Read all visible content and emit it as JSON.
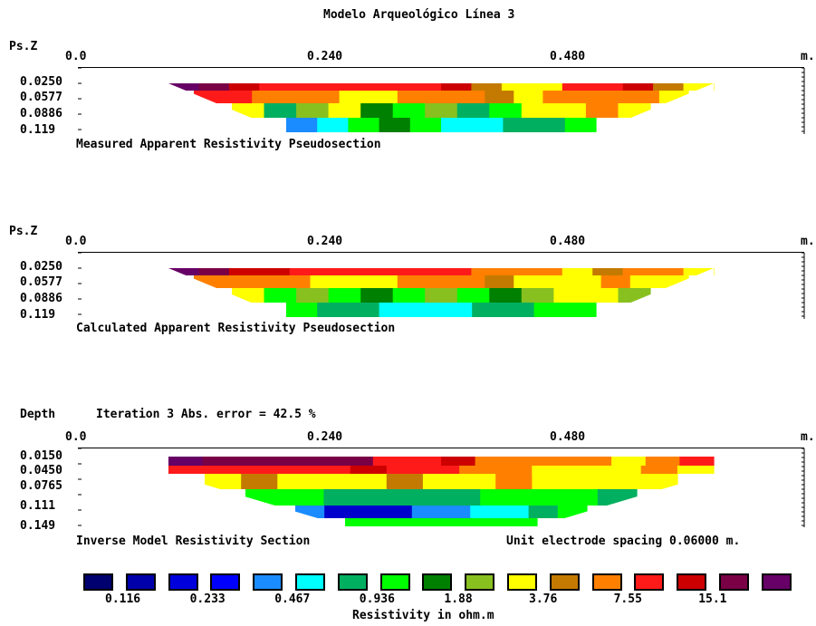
{
  "title": "Modelo Arqueológico Línea 3",
  "x_ticks": [
    "0.0",
    "0.240",
    "0.480"
  ],
  "x_unit": "m.",
  "panels": [
    {
      "id": "measured",
      "ylabel": "Ps.Z",
      "depths": [
        "0.0250",
        "0.0577",
        "0.0886",
        "0.119"
      ],
      "caption": "Measured Apparent Resistivity Pseudosection",
      "colors": [
        [
          "#660066",
          "#7a0046",
          "#cc0000",
          "#ff1a1a",
          "#ff1a1a",
          "#ff1a1a",
          "#ff1a1a",
          "#ff1a1a",
          "#ff1a1a",
          "#cc0000",
          "#c47a00",
          "#ffff00",
          "#ffff00",
          "#ff1a1a",
          "#ff1a1a",
          "#cc0000",
          "#c47a00",
          "#ffff00"
        ],
        [
          "#ff1a1a",
          "#ff1a1a",
          "#ff8000",
          "#ff8000",
          "#ff8000",
          "#ffff00",
          "#ffff00",
          "#ff8000",
          "#ff8000",
          "#ff8000",
          "#c47a00",
          "#ffff00",
          "#ff8000",
          "#ff8000",
          "#ff8000",
          "#ff8000",
          "#ffff00"
        ],
        [
          "#ffff00",
          "#00b060",
          "#88c020",
          "#ffff00",
          "#008000",
          "#00ff00",
          "#88c020",
          "#00b060",
          "#00ff00",
          "#ffff00",
          "#ffff00",
          "#ff8000",
          "#ffff00"
        ],
        [
          "#1a8cff",
          "#00ffff",
          "#00ff00",
          "#008000",
          "#00ff00",
          "#00ffff",
          "#00ffff",
          "#00b060",
          "#00b060",
          "#00ff00"
        ]
      ]
    },
    {
      "id": "calculated",
      "ylabel": "Ps.Z",
      "depths": [
        "0.0250",
        "0.0577",
        "0.0886",
        "0.119"
      ],
      "caption": "Calculated Apparent Resistivity Pseudosection",
      "colors": [
        [
          "#660066",
          "#7a0046",
          "#cc0000",
          "#cc0000",
          "#ff1a1a",
          "#ff1a1a",
          "#ff1a1a",
          "#ff1a1a",
          "#ff1a1a",
          "#ff1a1a",
          "#ff8000",
          "#ff8000",
          "#ff8000",
          "#ffff00",
          "#c47a00",
          "#ff8000",
          "#ff8000",
          "#ffff00"
        ],
        [
          "#ff8000",
          "#ff8000",
          "#ff8000",
          "#ff8000",
          "#ffff00",
          "#ffff00",
          "#ffff00",
          "#ff8000",
          "#ff8000",
          "#ff8000",
          "#c47a00",
          "#ffff00",
          "#ffff00",
          "#ffff00",
          "#ff8000",
          "#ffff00",
          "#ffff00"
        ],
        [
          "#ffff00",
          "#00ff00",
          "#88c020",
          "#00ff00",
          "#008000",
          "#00ff00",
          "#88c020",
          "#00ff00",
          "#008000",
          "#88c020",
          "#ffff00",
          "#ffff00",
          "#88c020"
        ],
        [
          "#00ff00",
          "#00b060",
          "#00b060",
          "#00ffff",
          "#00ffff",
          "#00ffff",
          "#00b060",
          "#00b060",
          "#00ff00",
          "#00ff00"
        ]
      ]
    },
    {
      "id": "inverse",
      "ylabel": "Depth",
      "iteration_text": "Iteration 3 Abs. error = 42.5 %",
      "depths": [
        "0.0150",
        "0.0450",
        "0.0765",
        "0.111",
        "0.149"
      ],
      "caption": "Inverse Model Resistivity Section",
      "spacing_text": "Unit electrode spacing 0.06000 m.",
      "colors": [
        [
          "#660066",
          "#7a0046",
          "#7a0046",
          "#7a0046",
          "#7a0046",
          "#7a0046",
          "#ff1a1a",
          "#ff1a1a",
          "#cc0000",
          "#ff8000",
          "#ff8000",
          "#ff8000",
          "#ff8000",
          "#ffff00",
          "#ff8000",
          "#ff1a1a"
        ],
        [
          "#ff1a1a",
          "#ff1a1a",
          "#ff1a1a",
          "#ff1a1a",
          "#ff1a1a",
          "#cc0000",
          "#ff1a1a",
          "#ff1a1a",
          "#ff8000",
          "#ff8000",
          "#ffff00",
          "#ffff00",
          "#ffff00",
          "#ff8000",
          "#ffff00"
        ],
        [
          "#ffff00",
          "#c47a00",
          "#ffff00",
          "#ffff00",
          "#ffff00",
          "#c47a00",
          "#ffff00",
          "#ffff00",
          "#ff8000",
          "#ffff00",
          "#ffff00",
          "#ffff00",
          "#ffff00"
        ],
        [
          "#00ff00",
          "#00ff00",
          "#00b060",
          "#00b060",
          "#00b060",
          "#00b060",
          "#00ff00",
          "#00ff00",
          "#00ff00",
          "#00b060"
        ],
        [
          "#1a8cff",
          "#0000cc",
          "#0000cc",
          "#0000cc",
          "#1a8cff",
          "#1a8cff",
          "#00ffff",
          "#00ffff",
          "#00b060",
          "#00ff00"
        ],
        [
          "#00ff00",
          "#00ff00",
          "#00ff00",
          "#00ff00",
          "#00ff00",
          "#00ff00"
        ]
      ]
    }
  ],
  "legend": {
    "title": "Resistivity in ohm.m",
    "colors": [
      "#00006e",
      "#0000aa",
      "#0000dd",
      "#0000ff",
      "#1a8cff",
      "#00ffff",
      "#00b060",
      "#00ff00",
      "#008000",
      "#88c020",
      "#ffff00",
      "#c47a00",
      "#ff8000",
      "#ff1a1a",
      "#cc0000",
      "#7a0046",
      "#660066"
    ],
    "labels": [
      "0.116",
      "0.233",
      "0.467",
      "0.936",
      "1.88",
      "3.76",
      "7.55",
      "15.1"
    ]
  },
  "chart_data": {
    "type": "heatmap",
    "title": "Modelo Arqueológico Línea 3",
    "xlabel": "m.",
    "x_ticks": [
      0.0,
      0.24,
      0.48
    ],
    "measured_depths": [
      0.025,
      0.0577,
      0.0886,
      0.119
    ],
    "calculated_depths": [
      0.025,
      0.0577,
      0.0886,
      0.119
    ],
    "model_depths": [
      0.015,
      0.045,
      0.0765,
      0.111,
      0.149
    ],
    "legend_values": [
      0.116,
      0.233,
      0.467,
      0.936,
      1.88,
      3.76,
      7.55,
      15.1
    ],
    "legend_unit": "ohm.m",
    "iteration": 3,
    "abs_error_percent": 42.5,
    "unit_electrode_spacing_m": 0.06
  }
}
